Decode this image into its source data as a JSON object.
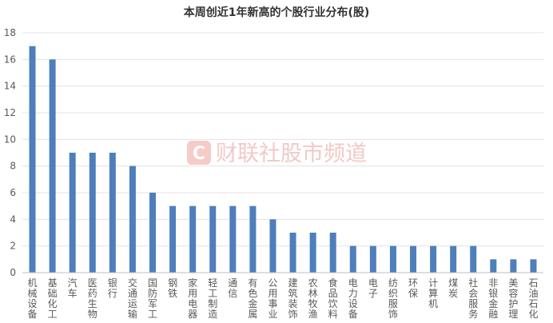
{
  "chart_data": {
    "type": "bar",
    "title": "本周创近1年新高的个股行业分布(股)",
    "xlabel": "",
    "ylabel": "",
    "ylim": [
      0,
      18
    ],
    "yticks": [
      0,
      2,
      4,
      6,
      8,
      10,
      12,
      14,
      16,
      18
    ],
    "grid": true,
    "legend": "none",
    "bar_color": "#4e7fbb",
    "categories": [
      "机械设备",
      "基础化工",
      "汽车",
      "医药生物",
      "银行",
      "交通运输",
      "国防军工",
      "钢铁",
      "家用电器",
      "轻工制造",
      "通信",
      "有色金属",
      "公用事业",
      "建筑装饰",
      "农林牧渔",
      "食品饮料",
      "电力设备",
      "电子",
      "纺织服饰",
      "环保",
      "计算机",
      "煤炭",
      "社会服务",
      "非银金融",
      "美容护理",
      "石油石化"
    ],
    "values": [
      17,
      16,
      9,
      9,
      9,
      8,
      6,
      5,
      5,
      5,
      5,
      5,
      4,
      3,
      3,
      3,
      2,
      2,
      2,
      2,
      2,
      2,
      2,
      1,
      1,
      1
    ]
  },
  "watermark": {
    "logo_letter": "C",
    "text": "财联社股市频道",
    "color": "#e0443a"
  }
}
